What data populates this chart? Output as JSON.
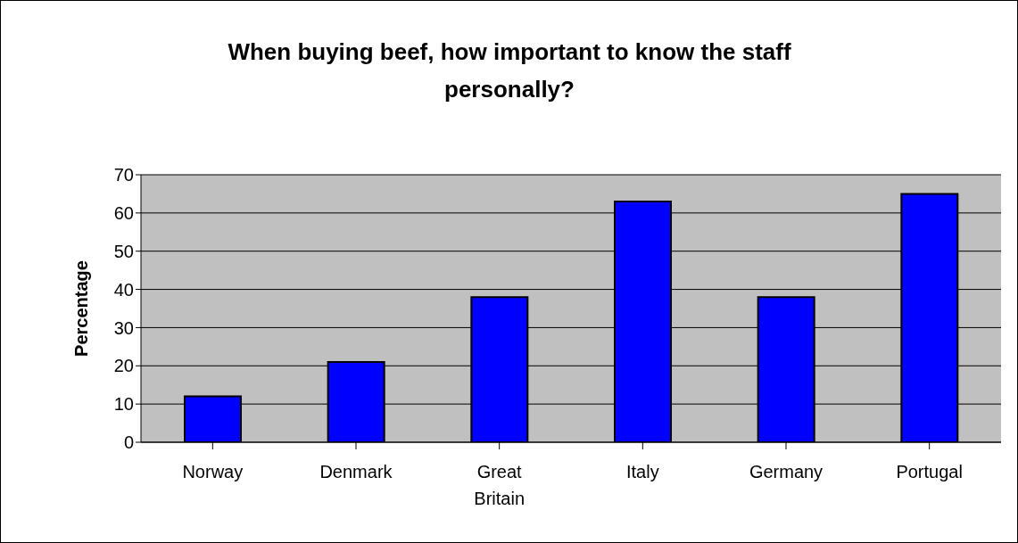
{
  "chart_data": {
    "type": "bar",
    "title": "When buying beef, how important to know the staff personally?",
    "ylabel": "Percentage",
    "categories": [
      "Norway",
      "Denmark",
      "Great Britain",
      "Italy",
      "Germany",
      "Portugal"
    ],
    "values": [
      12,
      21,
      38,
      63,
      38,
      65
    ],
    "color": "#0000ff",
    "ylim": [
      0,
      70
    ],
    "yticks": [
      0,
      10,
      20,
      30,
      40,
      50,
      60,
      70
    ],
    "grid": "y"
  }
}
